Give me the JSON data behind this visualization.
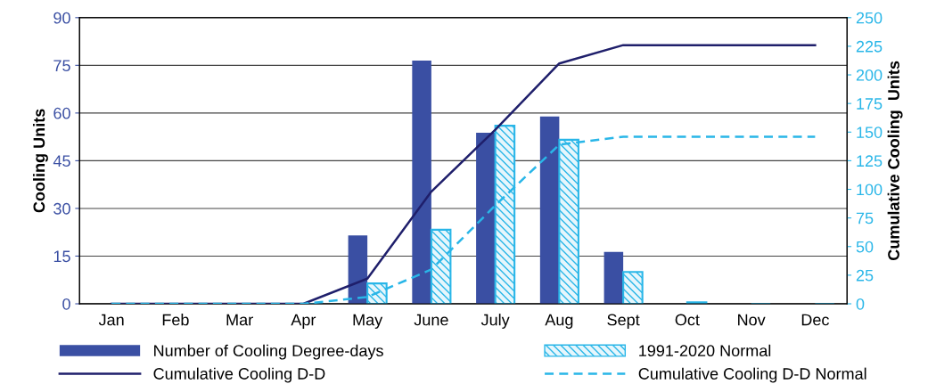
{
  "chart_data": {
    "type": "bar",
    "ylabel": "Cooling Units",
    "y2label": "Cumulative Cooling  Units",
    "categories": [
      "Jan",
      "Feb",
      "Mar",
      "Apr",
      "May",
      "June",
      "July",
      "Aug",
      "Sept",
      "Oct",
      "Nov",
      "Dec"
    ],
    "series": [
      {
        "name": "Number of Cooling Degree-days",
        "color": "#3a4fa3",
        "values": [
          0,
          0,
          0,
          0,
          21.5,
          76.5,
          53.8,
          58.9,
          16.3,
          0,
          0,
          0
        ]
      },
      {
        "name": "1991-2020 Normal",
        "color": "#29b6e8",
        "values": [
          0,
          0,
          0,
          0,
          6.4,
          23.3,
          56,
          51.6,
          10,
          0.5,
          0,
          0
        ]
      },
      {
        "name": "Cumulative Cooling D-D",
        "type": "line",
        "axis": "y2",
        "color": "#1f1f6b",
        "line_style": "solid",
        "values": [
          0,
          0,
          0,
          0,
          22,
          98,
          152,
          210,
          226,
          226,
          226,
          226
        ]
      },
      {
        "name": "Cumulative Cooling D-D Normal",
        "type": "line",
        "axis": "y2",
        "color": "#29b6e8",
        "line_style": "dashed",
        "values": [
          0,
          0,
          0,
          0,
          6,
          30,
          86,
          139,
          146,
          146,
          146,
          146
        ]
      }
    ],
    "ylim": [
      0,
      90
    ],
    "yticks": [
      0,
      15,
      30,
      45,
      60,
      75,
      90
    ],
    "y2lim": [
      0,
      250
    ],
    "y2ticks": [
      0,
      25,
      50,
      75,
      100,
      125,
      150,
      175,
      200,
      225,
      250
    ],
    "grid": "y",
    "legend": "bottom"
  }
}
